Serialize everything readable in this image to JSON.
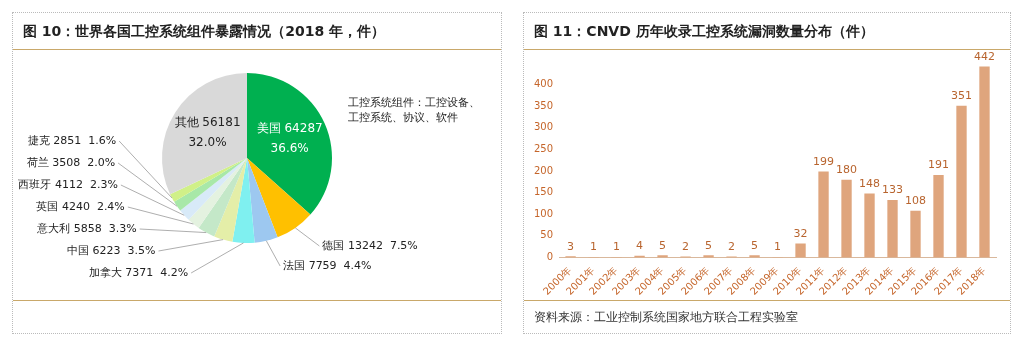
{
  "chart_data": [
    {
      "type": "pie",
      "title": "图 10：世界各国工控系统组件暴露情况（2018 年，件）",
      "categories": [
        "美国",
        "德国",
        "法国",
        "加拿大",
        "中国",
        "意大利",
        "英国",
        "西班牙",
        "荷兰",
        "捷克",
        "其他"
      ],
      "values": [
        64287,
        13242,
        7759,
        7371,
        6223,
        5858,
        4240,
        4112,
        3508,
        2851,
        56181
      ],
      "value_labels": [
        "64287 36.6%",
        "13242  7.5%",
        "7759  4.4%",
        "7371  4.2%",
        "6223  3.5%",
        "5858  3.3%",
        "4240  2.4%",
        "4112  2.3%",
        "3508  2.0%",
        "2851  1.6%",
        "56181 32.0%"
      ],
      "colors": [
        "#00b050",
        "#ffc000",
        "#9dc8f0",
        "#7ff0f0",
        "#e4eea8",
        "#c4e8c8",
        "#e4f2e0",
        "#d8eaf8",
        "#a8e8a8",
        "#d0f088",
        "#d9d9d9"
      ],
      "annotations": [
        "工控系统组件：工控设备、工控系统、协议、软件"
      ]
    },
    {
      "type": "bar",
      "title": "图 11：CNVD 历年收录工控系统漏洞数量分布（件）",
      "categories": [
        "2000年",
        "2001年",
        "2002年",
        "2003年",
        "2004年",
        "2005年",
        "2006年",
        "2007年",
        "2008年",
        "2009年",
        "2010年",
        "2011年",
        "2012年",
        "2013年",
        "2014年",
        "2015年",
        "2016年",
        "2017年",
        "2018年"
      ],
      "values": [
        3,
        1,
        1,
        4,
        5,
        2,
        5,
        2,
        5,
        1,
        32,
        199,
        180,
        148,
        133,
        108,
        191,
        351,
        442
      ],
      "color": "#dfa57d",
      "ylim": [
        0,
        450
      ],
      "yticks": [
        0,
        50,
        100,
        150,
        200,
        250,
        300,
        350,
        400
      ],
      "data_labels": true,
      "grid": false,
      "annotations": [
        "资料来源：工业控制系统国家地方联合工程实验室"
      ]
    }
  ]
}
